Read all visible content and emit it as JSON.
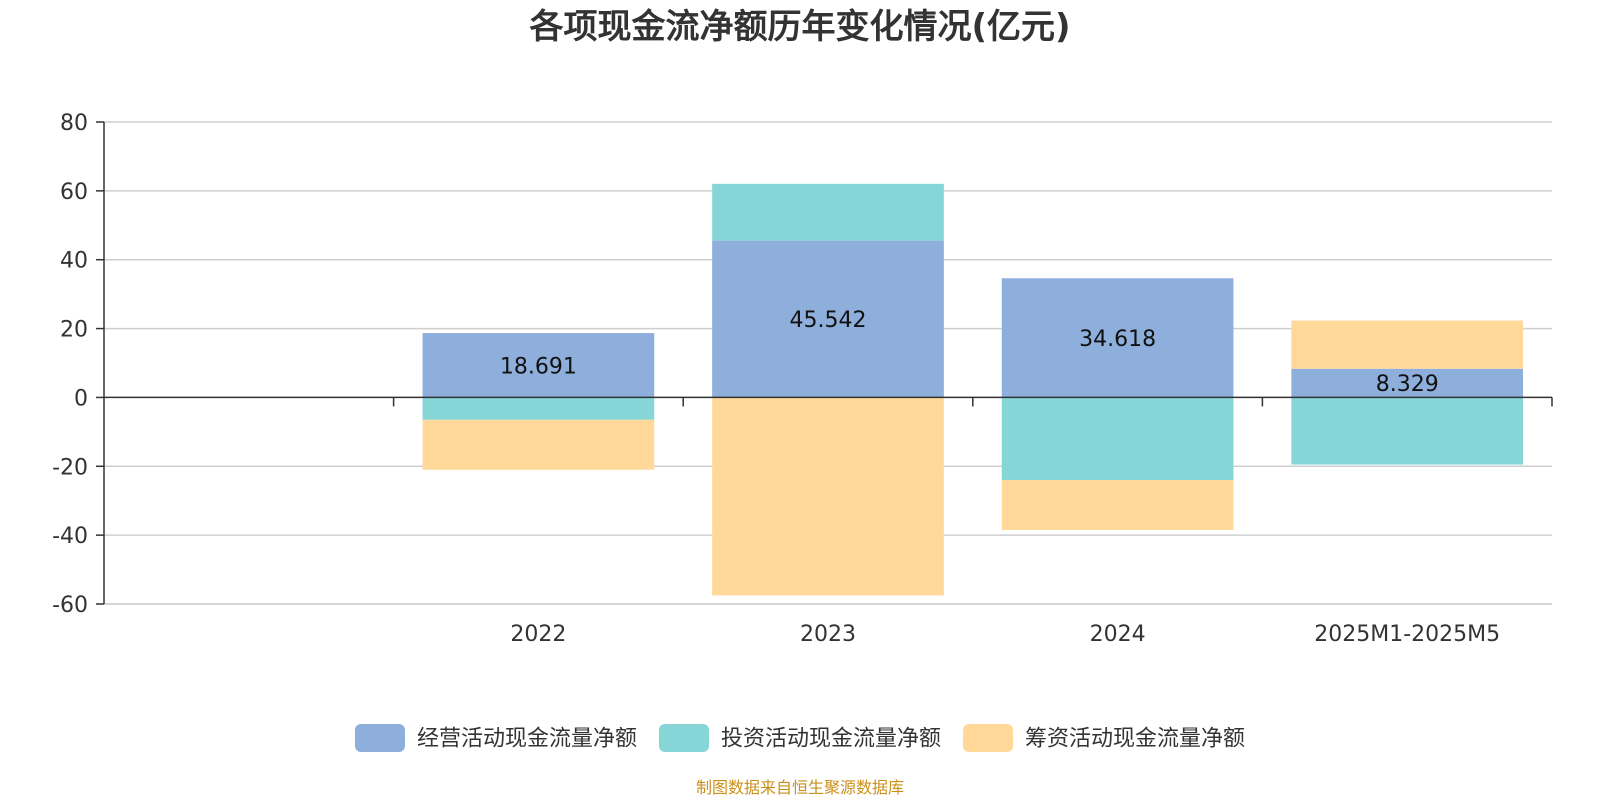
{
  "chart_data": {
    "type": "bar",
    "title": "各项现金流净额历年变化情况(亿元)",
    "categories": [
      "2022",
      "2023",
      "2024",
      "2025M1-2025M5"
    ],
    "empty_leading_categories": 1,
    "ylim": [
      -60,
      80
    ],
    "yticks": [
      80,
      60,
      40,
      20,
      0,
      -20,
      -40,
      -60
    ],
    "grid": true,
    "stacked": true,
    "series": [
      {
        "name": "经营活动现金流量净额",
        "color": "#8eaedb",
        "values": [
          18.691,
          45.542,
          34.618,
          8.329
        ],
        "show_labels": true
      },
      {
        "name": "投资活动现金流量净额",
        "color": "#86d6d8",
        "values": [
          -6.5,
          16.5,
          -24.0,
          -19.5
        ],
        "show_labels": false
      },
      {
        "name": "筹资活动现金流量净额",
        "color": "#ffd89a",
        "values": [
          -14.5,
          -57.5,
          -14.5,
          14.0
        ],
        "show_labels": false
      }
    ],
    "legend": {
      "position": "bottom"
    },
    "source": "制图数据来自恒生聚源数据库"
  }
}
